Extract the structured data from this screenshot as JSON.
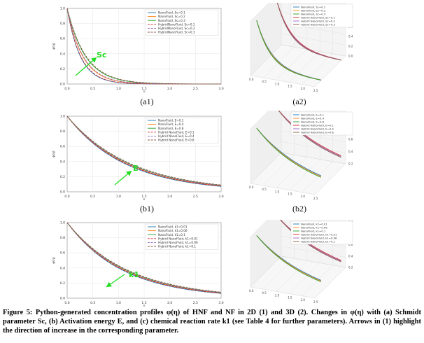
{
  "caption": "Figure 5: Python-generated concentration profiles φ(η) of HNF and NF in 2D (1) and 3D (2). Changes in φ(η) with (a) Schmidt parameter Sc, (b) Activation energy E, and (c) chemical reaction rate k1 (see Table 4 for further parameters). Arrows in (1) highlight the direction of increase in the corresponding parameter.",
  "colors": {
    "nf1": "#1f77b4",
    "nf2": "#ff7f0e",
    "nf3": "#2ca02c",
    "hnf1": "#d62728",
    "hnf2": "#9467bd",
    "hnf3": "#8c564b",
    "arrow": "#22dd22"
  },
  "chart_data": [
    {
      "id": "a1",
      "type": "line",
      "panel_label": "(a1)",
      "xlabel": "η",
      "ylabel": "φ(η)",
      "xlim": [
        0,
        3.0
      ],
      "ylim": [
        0,
        1.0
      ],
      "xticks": [
        "0.0",
        "0.5",
        "1.0",
        "1.5",
        "2.0",
        "2.5",
        "3.0"
      ],
      "yticks": [
        "0.0",
        "0.2",
        "0.4",
        "0.6",
        "0.8",
        "1.0"
      ],
      "legend_position": "top-right",
      "arrow_label": "Sc",
      "series": [
        {
          "name": "NanoFluid, Sc=0.1",
          "color": "#1f77b4",
          "dash": false,
          "decay": 3.9
        },
        {
          "name": "NanoFluid, Sc=0.2",
          "color": "#ff7f0e",
          "dash": false,
          "decay": 3.3
        },
        {
          "name": "NanoFluid, Sc=0.3",
          "color": "#2ca02c",
          "dash": false,
          "decay": 2.8
        },
        {
          "name": "HybridNanoFluid, Sc=0.1",
          "color": "#d62728",
          "dash": true,
          "decay": 3.8
        },
        {
          "name": "HybridNanoFluid, Sc=0.2",
          "color": "#9467bd",
          "dash": true,
          "decay": 3.2
        },
        {
          "name": "HybridNanoFluid, Sc=0.3",
          "color": "#8c564b",
          "dash": true,
          "decay": 2.7
        }
      ]
    },
    {
      "id": "b1",
      "type": "line",
      "panel_label": "(b1)",
      "xlabel": "η",
      "ylabel": "φ(η)",
      "xlim": [
        0,
        3.0
      ],
      "ylim": [
        0,
        1.0
      ],
      "xticks": [
        "0.0",
        "0.5",
        "1.0",
        "1.5",
        "2.0",
        "2.5",
        "3.0"
      ],
      "yticks": [
        "0.0",
        "0.2",
        "0.4",
        "0.6",
        "0.8",
        "1.0"
      ],
      "legend_position": "top-right",
      "arrow_label": "E",
      "series": [
        {
          "name": "NanoFluid, E=0.1",
          "color": "#1f77b4",
          "dash": false,
          "decay": 0.88
        },
        {
          "name": "NanoFluid, E=0.4",
          "color": "#ff7f0e",
          "dash": false,
          "decay": 0.85
        },
        {
          "name": "NanoFluid, E=0.8",
          "color": "#2ca02c",
          "dash": false,
          "decay": 0.82
        },
        {
          "name": "Hybrid NanoFluid, E=0.1",
          "color": "#d62728",
          "dash": true,
          "decay": 0.86
        },
        {
          "name": "Hybrid NanoFluid, E=0.4",
          "color": "#9467bd",
          "dash": true,
          "decay": 0.83
        },
        {
          "name": "Hybrid NanoFluid, E=0.8",
          "color": "#8c564b",
          "dash": true,
          "decay": 0.8
        }
      ]
    },
    {
      "id": "c1",
      "type": "line",
      "panel_label": "",
      "xlabel": "η",
      "ylabel": "φ(η)",
      "xlim": [
        0,
        3.0
      ],
      "ylim": [
        0,
        1.0
      ],
      "xticks": [
        "0.0",
        "0.5",
        "1.0",
        "1.5",
        "2.0",
        "2.5",
        "3.0"
      ],
      "yticks": [
        "0.0",
        "0.2",
        "0.4",
        "0.6",
        "0.8",
        "1.0"
      ],
      "legend_position": "top-right",
      "arrow_label": "k1",
      "series": [
        {
          "name": "NanoFluid, k1=0.01",
          "color": "#1f77b4",
          "dash": false,
          "decay": 0.92
        },
        {
          "name": "NanoFluid, k1=0.06",
          "color": "#ff7f0e",
          "dash": false,
          "decay": 0.89
        },
        {
          "name": "NanoFluid, k1=0.1",
          "color": "#2ca02c",
          "dash": false,
          "decay": 0.86
        },
        {
          "name": "Hybrid NanoFluid, k1=0.01",
          "color": "#d62728",
          "dash": true,
          "decay": 0.9
        },
        {
          "name": "Hybrid NanoFluid, k1=0.06",
          "color": "#9467bd",
          "dash": true,
          "decay": 0.87
        },
        {
          "name": "Hybrid NanoFluid, k1=0.1",
          "color": "#8c564b",
          "dash": true,
          "decay": 0.84
        }
      ]
    },
    {
      "id": "a2",
      "type": "line",
      "panel_label": "(a2)",
      "zlabel": "φ(η)",
      "zticks": [
        "1.0",
        "0.8",
        "0.6",
        "0.4",
        "0.2",
        "0.0"
      ],
      "xticks": [
        "0.0",
        "0.5",
        "1.0",
        "1.5",
        "2.0",
        "2.5"
      ],
      "series": [
        {
          "name": "NanoFluid, Sc=0.1",
          "color": "#1f77b4"
        },
        {
          "name": "NanoFluid, Sc=0.2",
          "color": "#ff7f0e"
        },
        {
          "name": "NanoFluid, Sc=0.3",
          "color": "#2ca02c"
        },
        {
          "name": "Hybrid NanoFluid, Sc=0.1",
          "color": "#d62728"
        },
        {
          "name": "Hybrid NanoFluid, Sc=0.2",
          "color": "#9467bd"
        },
        {
          "name": "Hybrid NanoFluid, Sc=0.3",
          "color": "#8c564b"
        }
      ]
    },
    {
      "id": "b2",
      "type": "line",
      "panel_label": "(b2)",
      "zlabel": "φ(η)",
      "zticks": [
        "1.0",
        "0.8",
        "0.6",
        "0.4",
        "0.2"
      ],
      "xticks": [
        "0.0",
        "0.5",
        "1.0",
        "1.5",
        "2.0",
        "2.5"
      ],
      "series": [
        {
          "name": "NanoFluid, E=0.1",
          "color": "#1f77b4"
        },
        {
          "name": "NanoFluid, E=0.4",
          "color": "#ff7f0e"
        },
        {
          "name": "NanoFluid, E=0.8",
          "color": "#2ca02c"
        },
        {
          "name": "Hybrid NanoFluid, E=0.1",
          "color": "#d62728"
        },
        {
          "name": "Hybrid NanoFluid, E=0.4",
          "color": "#9467bd"
        },
        {
          "name": "Hybrid NanoFluid, E=0.8",
          "color": "#8c564b"
        }
      ]
    },
    {
      "id": "c2",
      "type": "line",
      "panel_label": "",
      "zlabel": "φ(η)",
      "zticks": [
        "1.0",
        "0.8",
        "0.6",
        "0.4",
        "0.2"
      ],
      "xticks": [
        "0.0",
        "0.5",
        "1.0",
        "1.5",
        "2.0",
        "2.5"
      ],
      "series": [
        {
          "name": "NanoFluid, k1=0.01",
          "color": "#1f77b4"
        },
        {
          "name": "NanoFluid, k1=0.06",
          "color": "#ff7f0e"
        },
        {
          "name": "NanoFluid, k1=0.1",
          "color": "#2ca02c"
        },
        {
          "name": "Hybrid NanoFluid, k1=0.01",
          "color": "#d62728"
        },
        {
          "name": "Hybrid NanoFluid, k1=0.06",
          "color": "#9467bd"
        },
        {
          "name": "Hybrid NanoFluid, k1=0.1",
          "color": "#8c564b"
        }
      ]
    }
  ]
}
